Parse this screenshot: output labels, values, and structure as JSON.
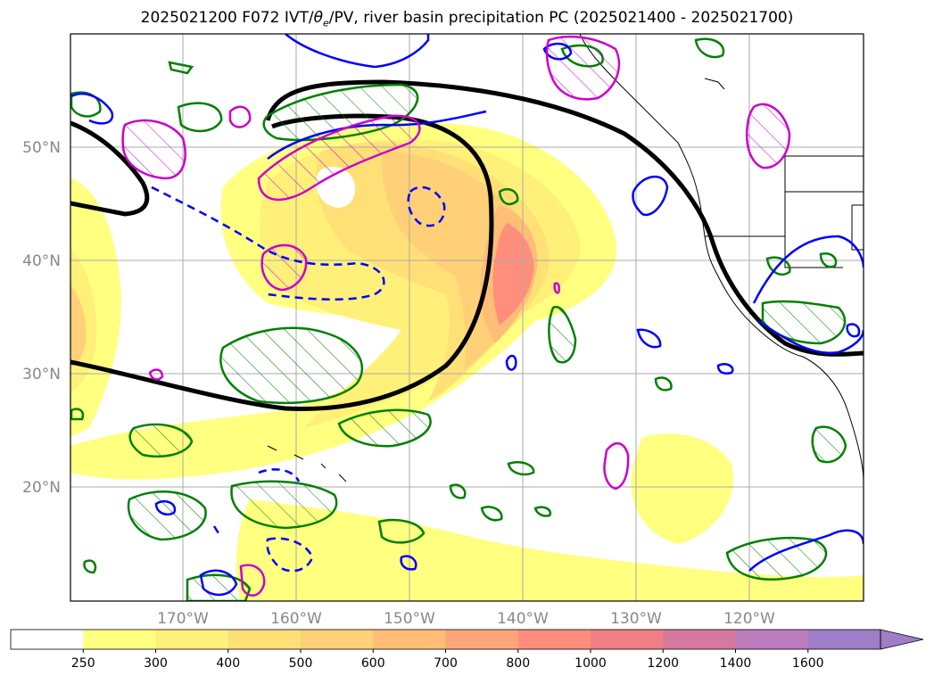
{
  "title": {
    "prefix": "2025021200 F072 IVT/",
    "theta": "θ",
    "theta_sub": "e",
    "suffix": "/PV, river basin precipitation PC (2025021400 - 2025021700)"
  },
  "lat_labels": [
    "50°N",
    "40°N",
    "30°N",
    "20°N"
  ],
  "lon_labels": [
    "170°W",
    "160°W",
    "150°W",
    "140°W",
    "130°W",
    "120°W"
  ],
  "colorbar": {
    "ticks": [
      "250",
      "300",
      "400",
      "500",
      "600",
      "700",
      "800",
      "1000",
      "1200",
      "1400",
      "1600"
    ],
    "colors": [
      "#ffffff",
      "#ffff80",
      "#fff07a",
      "#ffe076",
      "#ffd077",
      "#ffbd78",
      "#ffa57a",
      "#ff8f7c",
      "#f07f85",
      "#d57a9e",
      "#bb7bbd",
      "#a07dc8"
    ]
  },
  "contour_colors": {
    "theta_e": "#000000",
    "pv_positive": "#0000ff",
    "precip": "#008000",
    "anomaly": "#cc00cc"
  }
}
